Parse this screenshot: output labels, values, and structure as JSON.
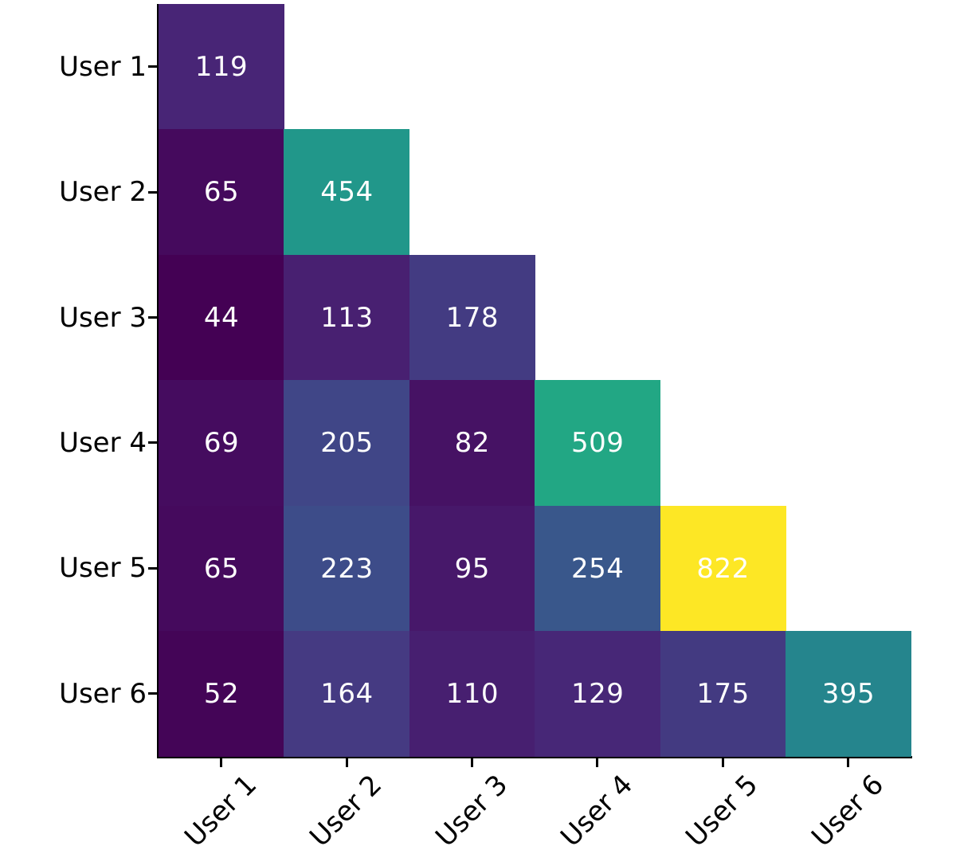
{
  "chart_data": {
    "type": "heatmap",
    "shape": "lower-triangular",
    "title": "",
    "xlabel": "",
    "ylabel": "",
    "x_labels": [
      "User 1",
      "User 2",
      "User 3",
      "User 4",
      "User 5",
      "User 6"
    ],
    "y_labels": [
      "User 1",
      "User 2",
      "User 3",
      "User 4",
      "User 5",
      "User 6"
    ],
    "matrix": [
      [
        119
      ],
      [
        65,
        454
      ],
      [
        44,
        113,
        178
      ],
      [
        69,
        205,
        82,
        509
      ],
      [
        65,
        223,
        95,
        254,
        822
      ],
      [
        52,
        164,
        110,
        129,
        175,
        395
      ]
    ],
    "cell_colors": [
      [
        "#482576"
      ],
      [
        "#450a5d",
        "#21978a"
      ],
      [
        "#440154",
        "#482071",
        "#433b82"
      ],
      [
        "#450c5f",
        "#404687",
        "#461264",
        "#22a784"
      ],
      [
        "#450a5d",
        "#3d4c89",
        "#47186a",
        "#39578b",
        "#fde725"
      ],
      [
        "#440557",
        "#453a82",
        "#471f70",
        "#472777",
        "#433a81",
        "#25858d"
      ]
    ],
    "vmin": 44,
    "vmax": 822,
    "colormap": "viridis",
    "annotation_color": "#ffffff",
    "axis_color": "#000000",
    "background_color": "#ffffff",
    "legend": "none",
    "grid": false
  }
}
